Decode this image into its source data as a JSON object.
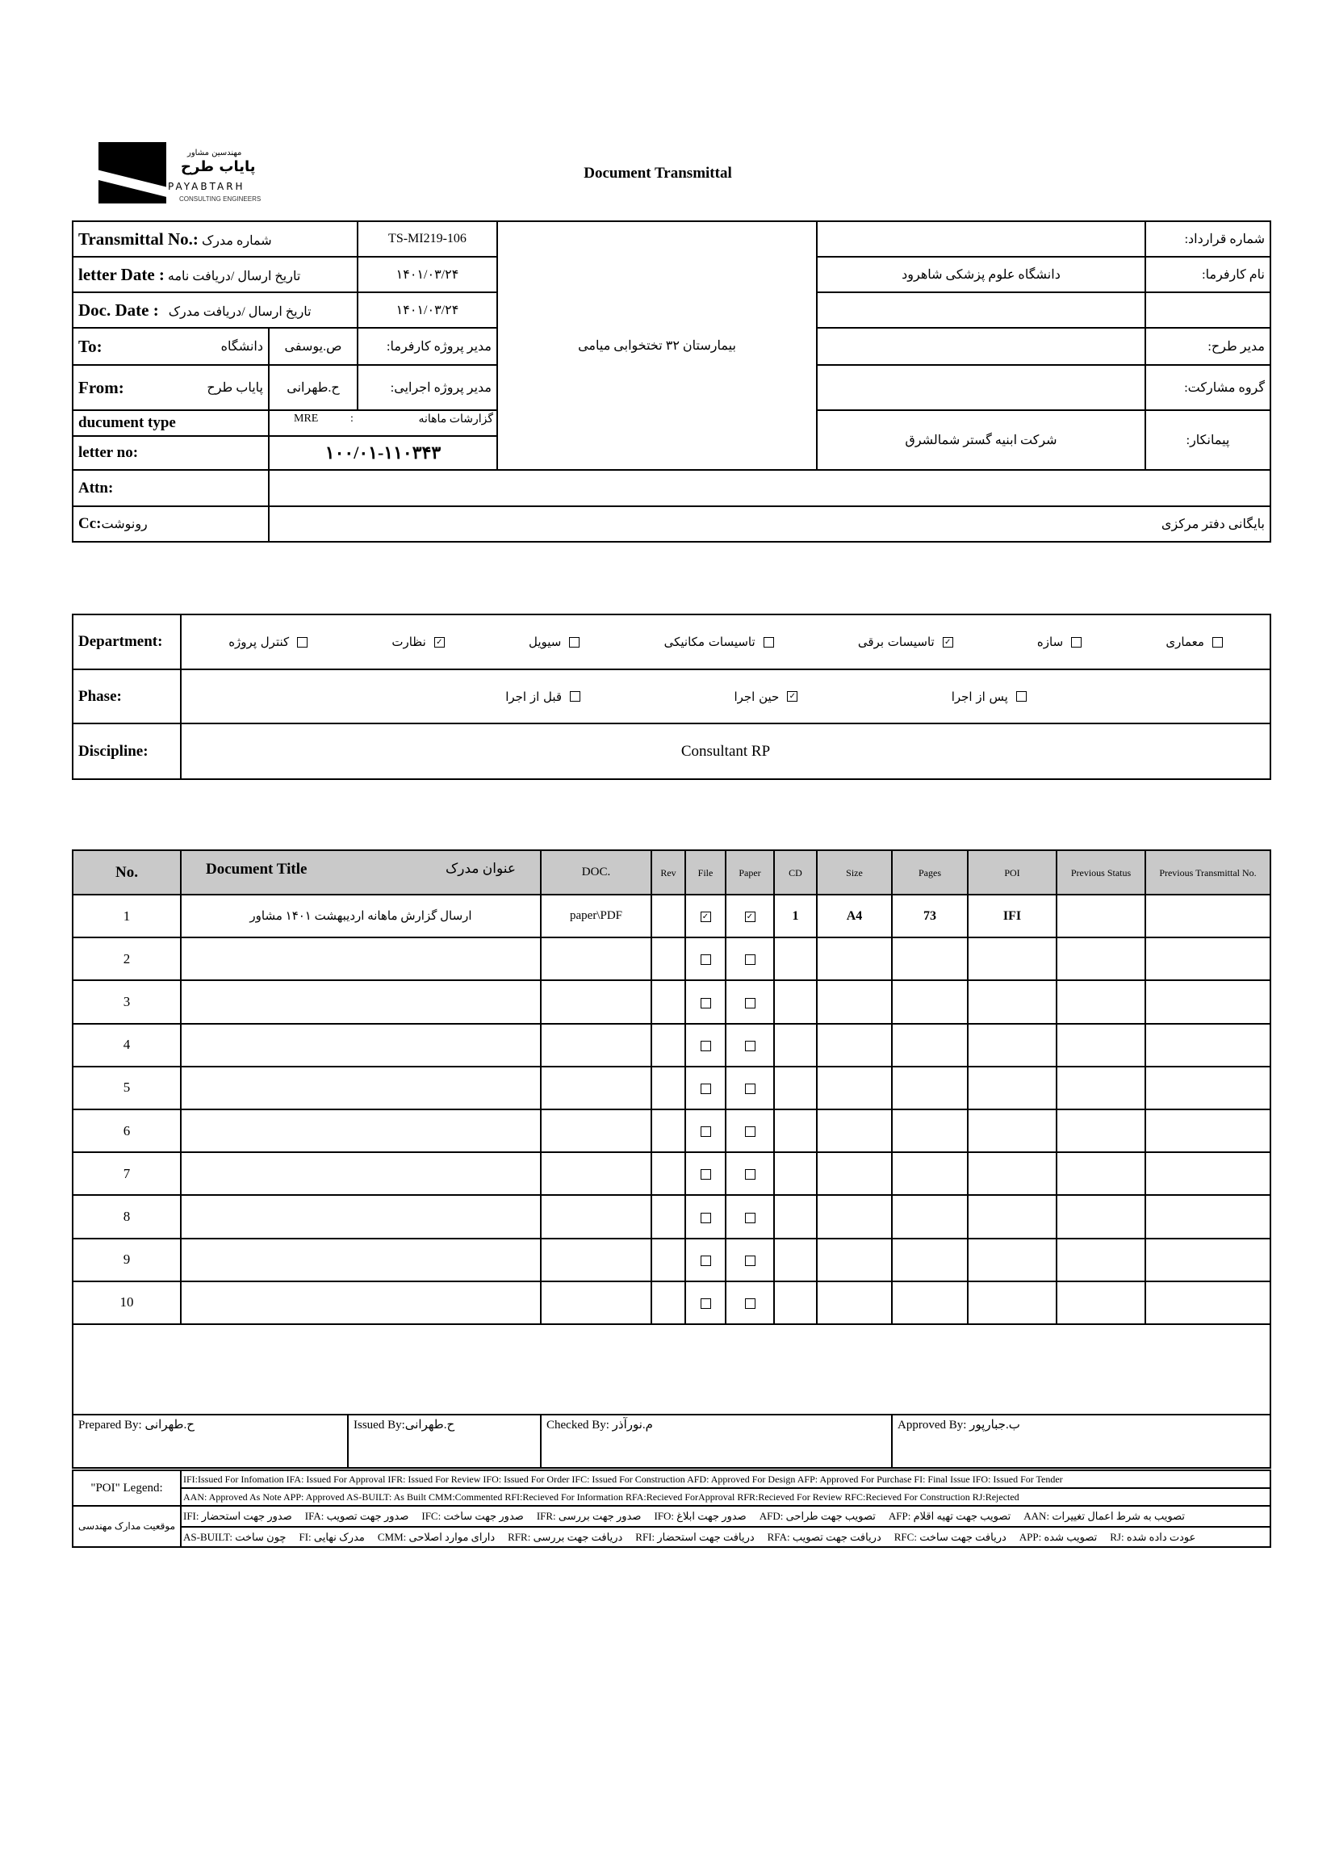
{
  "logo": {
    "line1": "مهندسین مشاور",
    "line2": "پایاب طرح",
    "line3": "PAYABTARH",
    "line4": "CONSULTING ENGINEERS"
  },
  "title": "Document Transmittal",
  "header": {
    "transmittal_label": "Transmittal No.:",
    "transmittal_label_fa": "شماره مدرک",
    "transmittal_no": "TS-MI219-106",
    "letter_date_label": "letter Date :",
    "letter_date_label_fa": "تاریخ ارسال /دریافت نامه",
    "letter_date": "۱۴۰۱/۰۳/۲۴",
    "doc_date_label": "Doc. Date :",
    "doc_date_label_fa": "تاریخ ارسال /دریافت مدرک",
    "doc_date": "۱۴۰۱/۰۳/۲۴",
    "to_label": "To:",
    "to_org": "دانشگاه",
    "to_person": "ص.یوسفی",
    "to_role": "مدیر پروژه کارفرما:",
    "from_label": "From:",
    "from_org": "پایاب طرح",
    "from_person": "ح.طهرانی",
    "from_role": "مدیر پروژه اجرایی:",
    "doctype_label": "ducument type",
    "doctype_code": "MRE",
    "doctype_sep": ":",
    "doctype_value": "گزارشات ماهانه",
    "letter_no_label": "letter no:",
    "letter_no": "۱۰۰/۰۱-۱۱۰۳۴۳",
    "project_name": "بیمارستان ۳۲ تختخوابی میامی",
    "contract_label": "شماره قرارداد:",
    "contract_value": "",
    "client_label": "نام کارفرما:",
    "client_value": "دانشگاه علوم پزشکی شاهرود",
    "blank_label": "",
    "blank_value": "",
    "pm_label": "مدیر طرح:",
    "pm_value": "",
    "partner_label": "گروه مشارکت:",
    "partner_value": "",
    "contractor_label": "پیمانکار:",
    "contractor_value": "شرکت ابنیه گستر شمالشرق",
    "attn_label": "Attn:",
    "attn_value": "",
    "cc_label": "Cc:",
    "cc_label_fa": "رونوشت",
    "cc_value": "بایگانی دفتر مرکزی"
  },
  "classification": {
    "department_label": "Department:",
    "departments": [
      {
        "label": "معماری",
        "checked": false
      },
      {
        "label": "سازه",
        "checked": false
      },
      {
        "label": "تاسیسات برقی",
        "checked": true
      },
      {
        "label": "تاسیسات مکانیکی",
        "checked": false
      },
      {
        "label": "سیویل",
        "checked": false
      },
      {
        "label": "نظارت",
        "checked": true
      },
      {
        "label": "کنترل پروژه",
        "checked": false
      }
    ],
    "phase_label": "Phase:",
    "phases": [
      {
        "label": "پس از اجرا",
        "checked": false
      },
      {
        "label": "حین اجرا",
        "checked": true
      },
      {
        "label": "قبل از اجرا",
        "checked": false
      }
    ],
    "discipline_label": "Discipline:",
    "discipline": "Consultant RP"
  },
  "documents": {
    "header_color": "#c9c9c9",
    "columns": {
      "no": "No.",
      "title": "Document Title",
      "title_fa": "عنوان مدرک",
      "doc": "DOC.",
      "rev": "Rev",
      "file": "File",
      "paper": "Paper",
      "cd": "CD",
      "size": "Size",
      "pages": "Pages",
      "poi": "POI",
      "prev_status": "Previous Status",
      "prev_transmittal": "Previous Transmittal No."
    },
    "rows": [
      {
        "no": "1",
        "title": "ارسال گزارش ماهانه اردیبهشت ۱۴۰۱ مشاور",
        "doc": "paper\\PDF",
        "rev": "",
        "file": true,
        "paper": true,
        "cd": "1",
        "size": "A4",
        "pages": "73",
        "poi": "IFI",
        "prev_status": "",
        "prev_transmittal": ""
      },
      {
        "no": "2",
        "title": "",
        "doc": "",
        "rev": "",
        "file": false,
        "paper": false,
        "cd": "",
        "size": "",
        "pages": "",
        "poi": "",
        "prev_status": "",
        "prev_transmittal": ""
      },
      {
        "no": "3",
        "title": "",
        "doc": "",
        "rev": "",
        "file": false,
        "paper": false,
        "cd": "",
        "size": "",
        "pages": "",
        "poi": "",
        "prev_status": "",
        "prev_transmittal": ""
      },
      {
        "no": "4",
        "title": "",
        "doc": "",
        "rev": "",
        "file": false,
        "paper": false,
        "cd": "",
        "size": "",
        "pages": "",
        "poi": "",
        "prev_status": "",
        "prev_transmittal": ""
      },
      {
        "no": "5",
        "title": "",
        "doc": "",
        "rev": "",
        "file": false,
        "paper": false,
        "cd": "",
        "size": "",
        "pages": "",
        "poi": "",
        "prev_status": "",
        "prev_transmittal": ""
      },
      {
        "no": "6",
        "title": "",
        "doc": "",
        "rev": "",
        "file": false,
        "paper": false,
        "cd": "",
        "size": "",
        "pages": "",
        "poi": "",
        "prev_status": "",
        "prev_transmittal": ""
      },
      {
        "no": "7",
        "title": "",
        "doc": "",
        "rev": "",
        "file": false,
        "paper": false,
        "cd": "",
        "size": "",
        "pages": "",
        "poi": "",
        "prev_status": "",
        "prev_transmittal": ""
      },
      {
        "no": "8",
        "title": "",
        "doc": "",
        "rev": "",
        "file": false,
        "paper": false,
        "cd": "",
        "size": "",
        "pages": "",
        "poi": "",
        "prev_status": "",
        "prev_transmittal": ""
      },
      {
        "no": "9",
        "title": "",
        "doc": "",
        "rev": "",
        "file": false,
        "paper": false,
        "cd": "",
        "size": "",
        "pages": "",
        "poi": "",
        "prev_status": "",
        "prev_transmittal": ""
      },
      {
        "no": "10",
        "title": "",
        "doc": "",
        "rev": "",
        "file": false,
        "paper": false,
        "cd": "",
        "size": "",
        "pages": "",
        "poi": "",
        "prev_status": "",
        "prev_transmittal": ""
      }
    ]
  },
  "signatures": {
    "prepared": "Prepared By: ح.طهرانی",
    "issued": "Issued By:ح.طهرانی",
    "checked": "Checked By: م.نورآذر",
    "approved": "Approved By: ب.جبارپور"
  },
  "legend": {
    "poi_label": "\"POI\" Legend:",
    "poi_line1": "IFI:Issued For Infomation  IFA: Issued For Approval  IFR: Issued For Review   IFO: Issued For Order  IFC: Issued For Construction  AFD: Approved For Design  AFP: Approved For Purchase   FI: Final Issue  IFO: Issued For Tender",
    "poi_line2": "AAN: Approved As Note   APP: Approved  AS-BUILT: As Built CMM:Commented  RFI:Recieved For Information   RFA:Recieved ForApproval   RFR:Recieved For Review  RFC:Recieved For Construction  RJ:Rejected",
    "status_label": "موقعیت مدارک مهندسی",
    "status_line1": [
      "IFI: صدور جهت استحضار",
      "IFA: صدور جهت تصویب",
      "IFC: صدور جهت ساخت",
      "IFR: صدور جهت بررسی",
      "IFO: صدور جهت ابلاغ",
      "AFD: تصویب جهت طراحی",
      "AFP: تصویب جهت تهیه اقلام",
      "AAN: تصویب به شرط اعمال تغییرات"
    ],
    "status_line2": [
      "AS-BUILT: چون ساخت",
      "FI: مدرک نهایی",
      "CMM: دارای موارد اصلاحی",
      "RFR: دریافت جهت بررسی",
      "RFI: دریافت جهت استحضار",
      "RFA: دریافت جهت تصویب",
      "RFC: دریافت جهت ساخت",
      "APP: تصویب شده",
      "RJ: عودت داده شده"
    ]
  }
}
